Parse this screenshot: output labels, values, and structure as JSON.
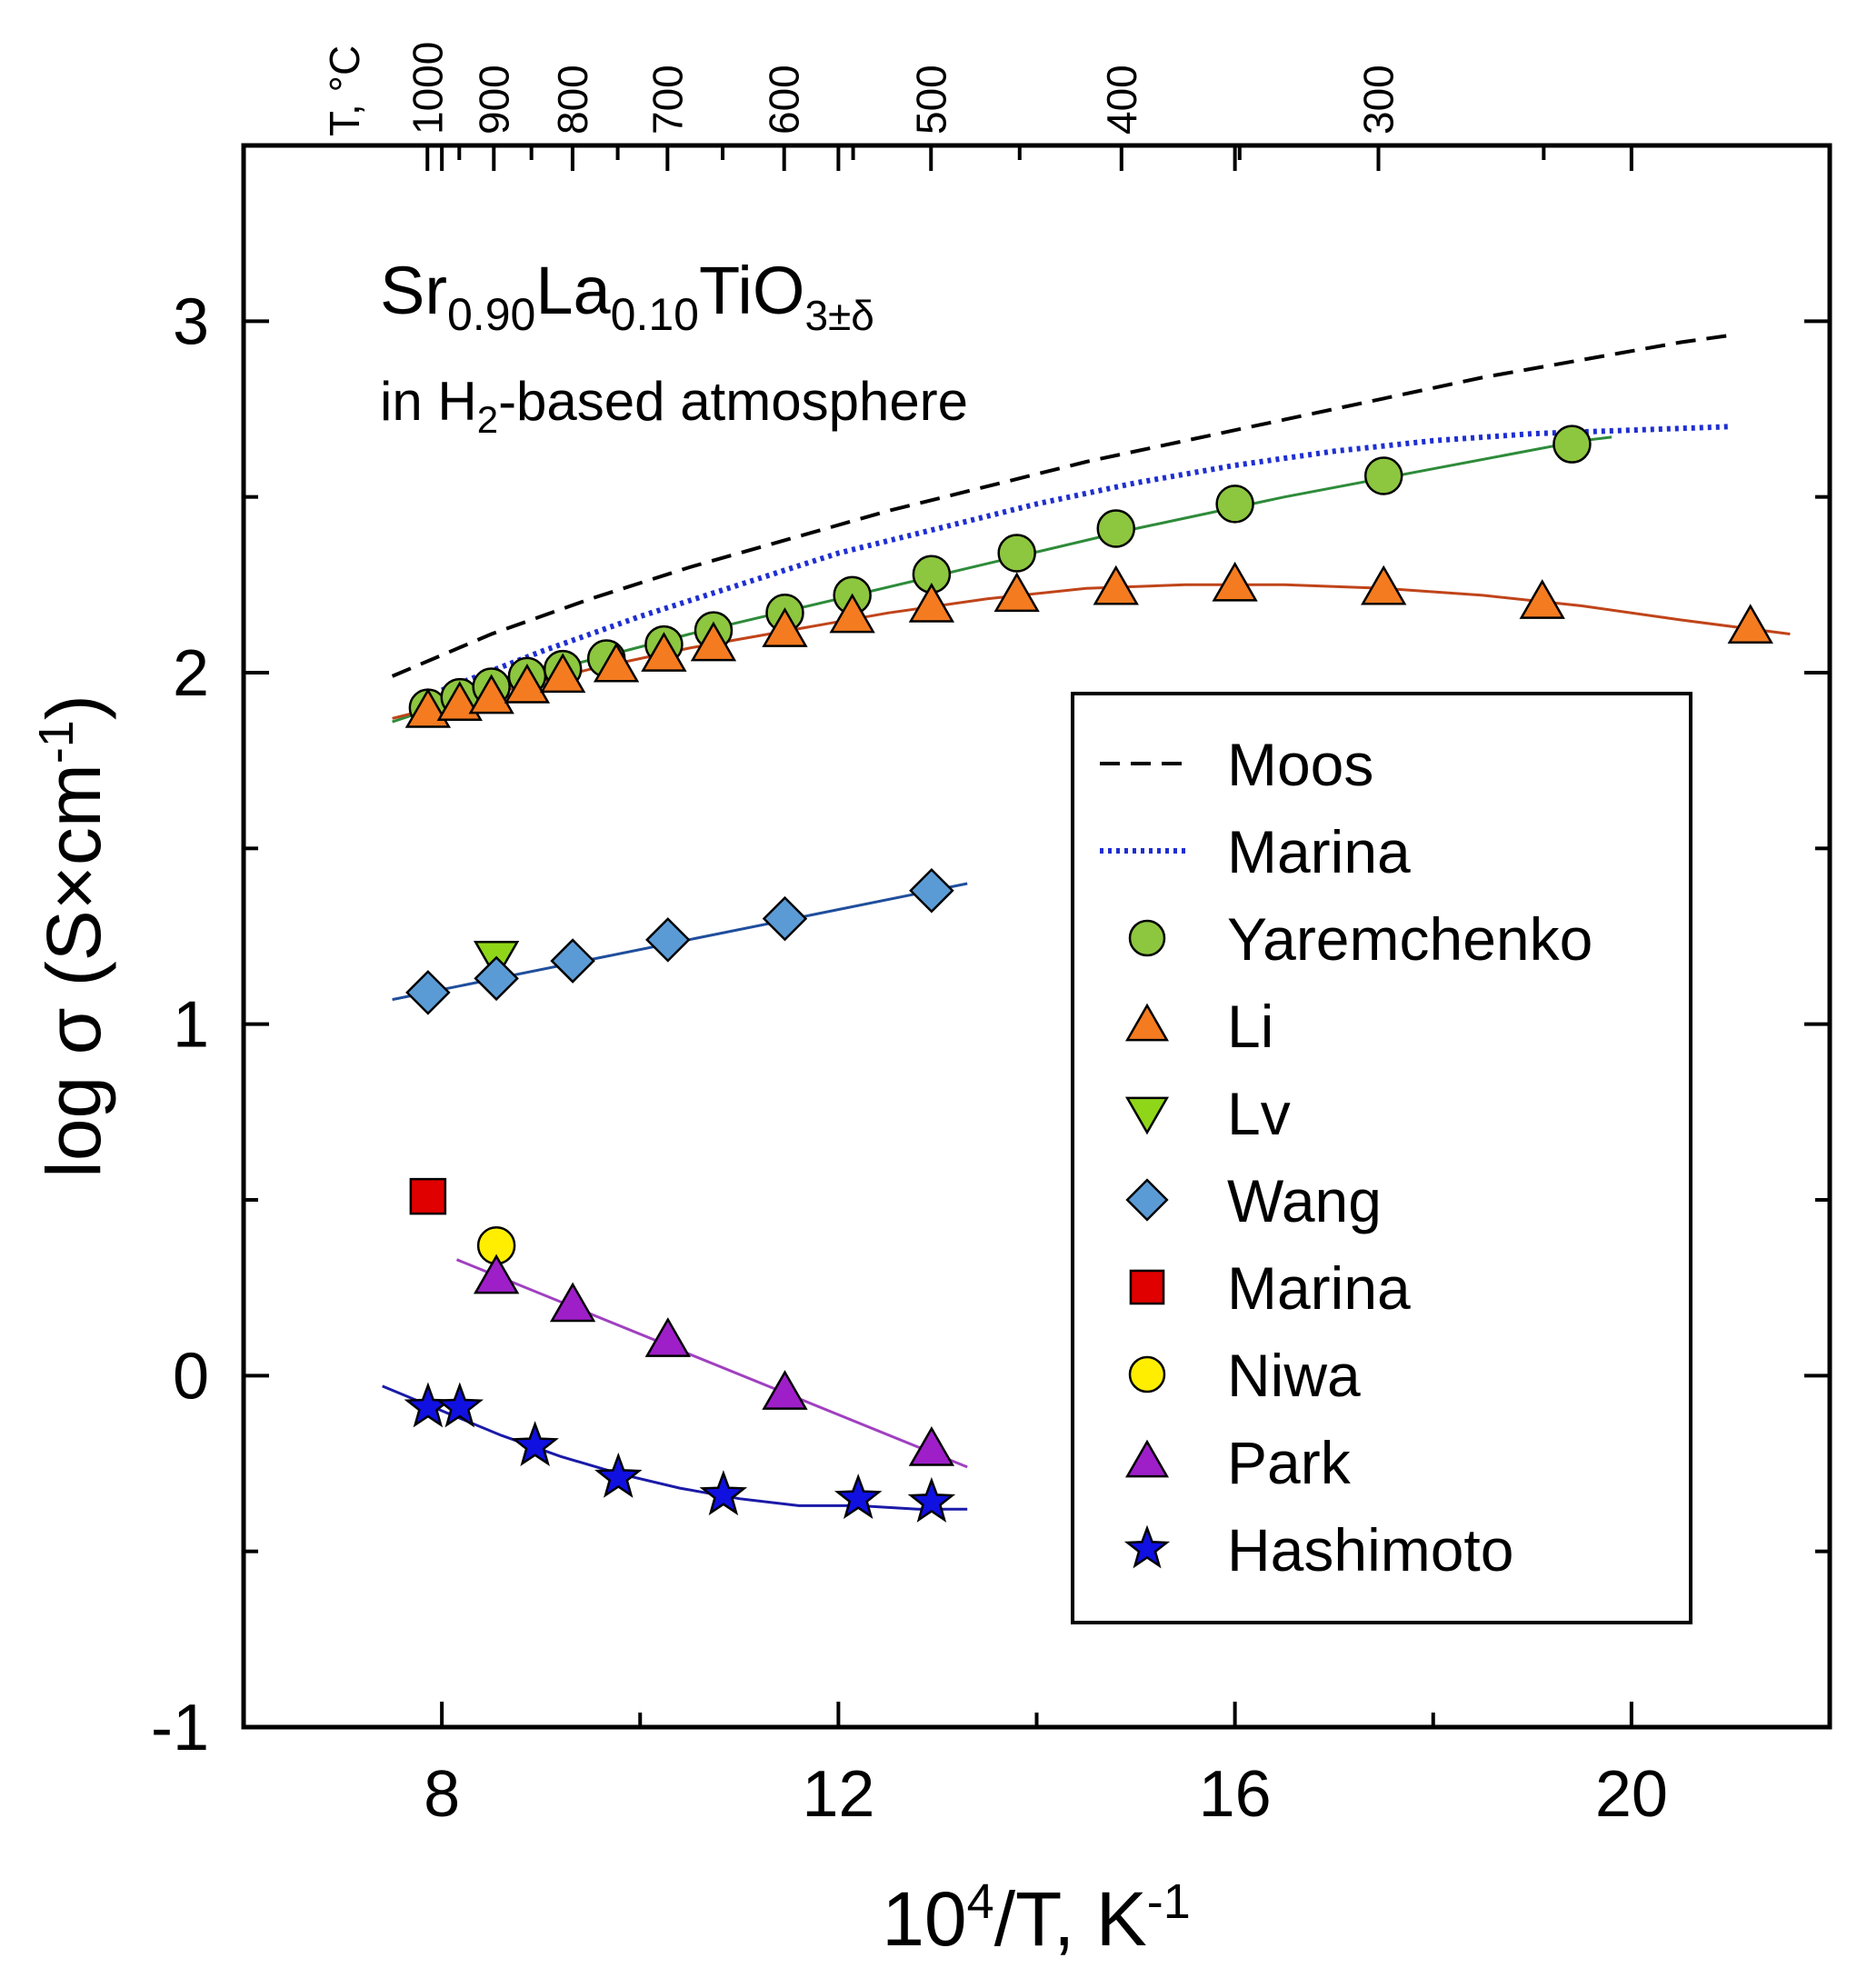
{
  "chart_data": {
    "type": "scatter",
    "title": "",
    "annotation": {
      "formula": {
        "base1": "Sr",
        "sub1": "0.90",
        "base2": "La",
        "sub2": "0.10",
        "base3": "TiO",
        "sub3": "3±δ"
      },
      "atmosphere": {
        "pre": "in H",
        "sub": "2",
        "post": "-based atmosphere"
      }
    },
    "xlabel": {
      "base": "10",
      "sup": "4",
      "mid": "/T, K",
      "sup2": "-1"
    },
    "ylabel": {
      "pre": "log σ (S×cm",
      "sup": "-1",
      "post": ")"
    },
    "xlim": [
      6,
      22
    ],
    "ylim": [
      -1,
      3.5
    ],
    "x_ticks": [
      8,
      12,
      16,
      20
    ],
    "x_tick_labels": [
      "8",
      "12",
      "16",
      "20"
    ],
    "x_minor_ticks": [
      10,
      14,
      18
    ],
    "y_ticks": [
      -1,
      0,
      1,
      2,
      3
    ],
    "y_tick_labels": [
      "-1",
      "0",
      "1",
      "2",
      "3"
    ],
    "y_minor_ticks": [
      -0.5,
      0.5,
      1.5,
      2.5
    ],
    "top_axis": {
      "title": "T, °C",
      "ticks": [
        1000,
        900,
        800,
        700,
        600,
        500,
        400,
        300
      ],
      "tick_labels": [
        "1000",
        "900",
        "800",
        "700",
        "600",
        "500",
        "400",
        "300"
      ],
      "minor_ticks": [
        950,
        850,
        750,
        650,
        550,
        450,
        350,
        250
      ]
    },
    "legend": {
      "position": "center-right"
    },
    "series": [
      {
        "name": "Moos",
        "kind": "line",
        "style": "dashed",
        "color": "#000000",
        "x": [
          7.5,
          8.5,
          9.5,
          10.5,
          11.5,
          12.5,
          13.5,
          14.5,
          15.5,
          16.5,
          17.5,
          18.5,
          19.5,
          20.5,
          21.0
        ],
        "y": [
          1.99,
          2.11,
          2.21,
          2.3,
          2.38,
          2.46,
          2.53,
          2.6,
          2.66,
          2.72,
          2.78,
          2.84,
          2.89,
          2.94,
          2.96
        ]
      },
      {
        "name": "Marina",
        "kind": "line",
        "style": "dotted",
        "color": "#1f2fd1",
        "x": [
          8.0,
          9.0,
          10.0,
          11.0,
          12.0,
          13.0,
          14.0,
          15.0,
          16.0,
          17.0,
          18.0,
          19.0,
          20.0,
          21.0
        ],
        "y": [
          1.95,
          2.06,
          2.16,
          2.25,
          2.34,
          2.41,
          2.48,
          2.54,
          2.59,
          2.63,
          2.66,
          2.68,
          2.69,
          2.7
        ]
      },
      {
        "name": "Yaremchenko",
        "kind": "marker",
        "marker": "circle",
        "color": "#8dc63f",
        "fit_color": "#2e8b3a",
        "x": [
          7.86,
          8.18,
          8.5,
          8.86,
          9.22,
          9.66,
          10.24,
          10.74,
          11.46,
          12.14,
          12.94,
          13.8,
          14.8,
          16.0,
          17.5,
          19.4
        ],
        "y": [
          1.9,
          1.93,
          1.96,
          1.99,
          2.01,
          2.04,
          2.08,
          2.12,
          2.17,
          2.22,
          2.28,
          2.34,
          2.41,
          2.48,
          2.56,
          2.65
        ],
        "fit_x": [
          7.5,
          9.0,
          10.5,
          12.0,
          13.5,
          15.0,
          16.5,
          18.0,
          19.5,
          19.8
        ],
        "fit_y": [
          1.86,
          2.0,
          2.11,
          2.21,
          2.31,
          2.41,
          2.5,
          2.58,
          2.66,
          2.67
        ]
      },
      {
        "name": "Li",
        "kind": "marker",
        "marker": "triangle-up",
        "color": "#f47b20",
        "fit_color": "#c0441a",
        "x": [
          7.86,
          8.18,
          8.5,
          8.86,
          9.22,
          9.76,
          10.24,
          10.74,
          11.46,
          12.14,
          12.94,
          13.8,
          14.8,
          16.0,
          17.5,
          19.1,
          21.2
        ],
        "y": [
          1.89,
          1.91,
          1.93,
          1.96,
          1.99,
          2.02,
          2.05,
          2.08,
          2.12,
          2.16,
          2.19,
          2.22,
          2.24,
          2.25,
          2.24,
          2.2,
          2.13
        ],
        "fit_x": [
          7.5,
          8.5,
          9.5,
          10.5,
          11.5,
          12.5,
          13.5,
          14.5,
          15.5,
          16.5,
          17.5,
          18.5,
          19.5,
          20.5,
          21.6
        ],
        "fit_y": [
          1.87,
          1.94,
          2.01,
          2.07,
          2.12,
          2.17,
          2.21,
          2.24,
          2.25,
          2.25,
          2.24,
          2.22,
          2.19,
          2.15,
          2.11
        ]
      },
      {
        "name": "Lv",
        "kind": "marker",
        "marker": "triangle-down",
        "color": "#8fd619",
        "x": [
          8.55
        ],
        "y": [
          1.19
        ]
      },
      {
        "name": "Wang",
        "kind": "marker",
        "marker": "diamond",
        "color": "#5b9bd5",
        "fit_color": "#1f4e9c",
        "x": [
          7.86,
          8.55,
          9.32,
          10.28,
          11.46,
          12.94
        ],
        "y": [
          1.09,
          1.13,
          1.18,
          1.24,
          1.3,
          1.38
        ],
        "fit_x": [
          7.5,
          13.3
        ],
        "fit_y": [
          1.07,
          1.4
        ]
      },
      {
        "name": "Marina",
        "kind": "marker",
        "marker": "square",
        "color": "#e00000",
        "x": [
          7.86
        ],
        "y": [
          0.51
        ]
      },
      {
        "name": "Niwa",
        "kind": "marker",
        "marker": "circle",
        "color": "#ffee00",
        "x": [
          8.55
        ],
        "y": [
          0.37
        ]
      },
      {
        "name": "Park",
        "kind": "marker",
        "marker": "triangle-up",
        "color": "#9e1fc8",
        "fit_color": "#a040c0",
        "x": [
          8.55,
          9.32,
          10.28,
          11.46,
          12.94
        ],
        "y": [
          0.28,
          0.2,
          0.1,
          -0.05,
          -0.21
        ],
        "fit_x": [
          8.15,
          13.3
        ],
        "fit_y": [
          0.33,
          -0.26
        ]
      },
      {
        "name": "Hashimoto",
        "kind": "marker",
        "marker": "star",
        "color": "#1010e0",
        "fit_color": "#1a1aa8",
        "x": [
          7.86,
          8.18,
          8.94,
          9.78,
          10.84,
          12.2,
          12.94
        ],
        "y": [
          -0.09,
          -0.09,
          -0.2,
          -0.29,
          -0.34,
          -0.35,
          -0.36
        ],
        "fit_x": [
          7.4,
          8.0,
          8.6,
          9.2,
          9.8,
          10.4,
          11.0,
          11.6,
          12.2,
          12.8,
          13.3
        ],
        "fit_y": [
          -0.03,
          -0.1,
          -0.17,
          -0.23,
          -0.28,
          -0.32,
          -0.35,
          -0.37,
          -0.37,
          -0.38,
          -0.38
        ]
      }
    ]
  }
}
